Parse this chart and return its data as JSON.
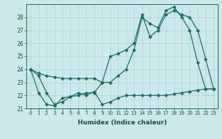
{
  "xlabel": "Humidex (Indice chaleur)",
  "ylabel": "",
  "xlim": [
    -0.5,
    23.5
  ],
  "ylim": [
    21,
    29
  ],
  "yticks": [
    21,
    22,
    23,
    24,
    25,
    26,
    27,
    28
  ],
  "xticks": [
    0,
    1,
    2,
    3,
    4,
    5,
    6,
    7,
    8,
    9,
    10,
    11,
    12,
    13,
    14,
    15,
    16,
    17,
    18,
    19,
    20,
    21,
    22,
    23
  ],
  "bg_color": "#cce8e8",
  "line_color": "#1a6b6b",
  "grid_color": "#aad4d4",
  "line1": [
    24.0,
    23.7,
    23.5,
    23.4,
    23.3,
    23.3,
    23.3,
    23.3,
    23.3,
    23.0,
    23.0,
    23.5,
    24.0,
    25.5,
    28.0,
    27.5,
    27.2,
    28.5,
    28.8,
    28.0,
    27.0,
    24.5,
    22.5,
    22.5
  ],
  "line2": [
    24.0,
    23.5,
    22.2,
    21.3,
    21.5,
    21.9,
    22.0,
    22.2,
    22.2,
    23.0,
    25.0,
    25.2,
    25.5,
    26.0,
    28.2,
    26.5,
    27.0,
    28.2,
    28.5,
    28.2,
    28.0,
    27.0,
    24.8,
    22.5
  ],
  "line3": [
    24.0,
    22.2,
    21.3,
    21.2,
    21.8,
    21.9,
    22.2,
    22.0,
    22.3,
    21.3,
    21.5,
    21.8,
    22.0,
    22.0,
    22.0,
    22.0,
    22.0,
    22.0,
    22.1,
    22.2,
    22.3,
    22.4,
    22.5,
    22.5
  ]
}
